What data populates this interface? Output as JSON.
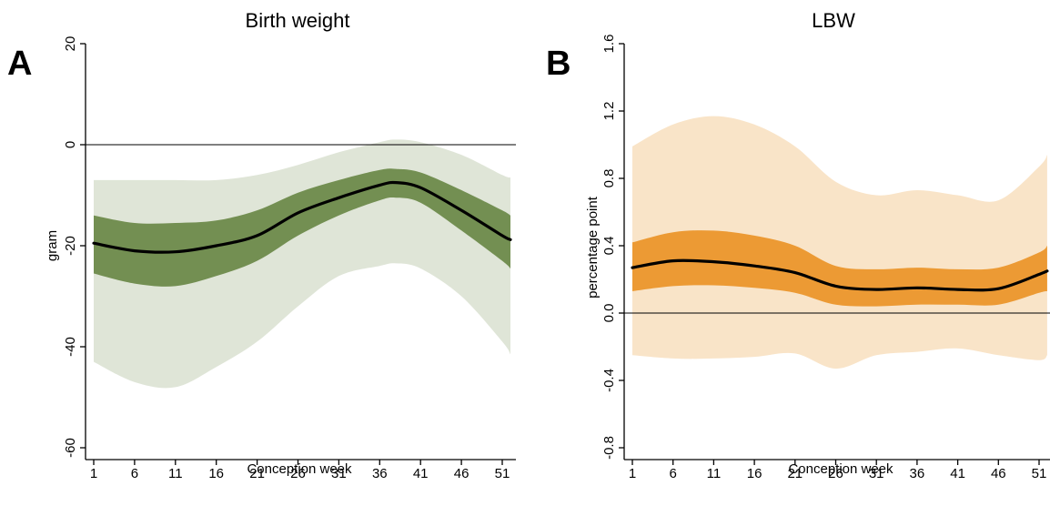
{
  "chart_data": [
    {
      "type": "line",
      "panel": "A",
      "title": "Birth weight",
      "xlabel": "Conception week",
      "ylabel": "gram",
      "xlim": [
        0,
        53
      ],
      "ylim": [
        -60,
        20
      ],
      "x_ticks": [
        1,
        6,
        11,
        16,
        21,
        26,
        31,
        36,
        41,
        46,
        51
      ],
      "y_ticks": [
        -60,
        -40,
        -20,
        0,
        20
      ],
      "reference_line": 0,
      "colors": {
        "line": "#000000",
        "inner_band": "#738f52",
        "outer_band": "#dfe5d7"
      },
      "x": [
        1,
        6,
        11,
        16,
        21,
        26,
        31,
        36,
        38,
        41,
        46,
        51,
        52
      ],
      "estimate": [
        -19.5,
        -21,
        -21.2,
        -20,
        -18,
        -13.5,
        -10.5,
        -8,
        -7.5,
        -8.5,
        -13,
        -18,
        -18.8
      ],
      "inner_lower": [
        -25.5,
        -27.5,
        -28,
        -26,
        -23,
        -18,
        -14,
        -11,
        -10.5,
        -11.5,
        -17,
        -23,
        -24.5
      ],
      "inner_upper": [
        -14,
        -15.5,
        -15.5,
        -15,
        -13,
        -9.5,
        -7,
        -5,
        -4.8,
        -5.5,
        -9,
        -13,
        -14
      ],
      "outer_lower": [
        -43,
        -47,
        -48,
        -44,
        -39,
        -32,
        -26,
        -24,
        -23.5,
        -24.5,
        -30,
        -39,
        -41.5
      ],
      "outer_upper": [
        -7,
        -7,
        -7,
        -7,
        -6,
        -4,
        -1.5,
        0.5,
        1,
        0.5,
        -2,
        -6,
        -6.5
      ]
    },
    {
      "type": "line",
      "panel": "B",
      "title": "LBW",
      "xlabel": "Conception week",
      "ylabel": "percentage point",
      "xlim": [
        0,
        53
      ],
      "ylim": [
        -0.8,
        1.6
      ],
      "x_ticks": [
        1,
        6,
        11,
        16,
        21,
        26,
        31,
        36,
        41,
        46,
        51
      ],
      "y_ticks": [
        "-0.8",
        "-0.4",
        "0.0",
        "0.4",
        "0.8",
        "1.2",
        "1.6"
      ],
      "reference_line": 0,
      "colors": {
        "line": "#000000",
        "inner_band": "#ec9a34",
        "outer_band": "#f9e4c8"
      },
      "x": [
        1,
        6,
        11,
        16,
        21,
        26,
        31,
        36,
        41,
        46,
        51,
        52
      ],
      "estimate": [
        0.27,
        0.31,
        0.305,
        0.28,
        0.24,
        0.16,
        0.14,
        0.15,
        0.14,
        0.145,
        0.23,
        0.25
      ],
      "inner_lower": [
        0.13,
        0.16,
        0.165,
        0.15,
        0.12,
        0.05,
        0.04,
        0.05,
        0.05,
        0.05,
        0.12,
        0.13
      ],
      "inner_upper": [
        0.42,
        0.48,
        0.49,
        0.46,
        0.4,
        0.28,
        0.26,
        0.27,
        0.26,
        0.27,
        0.36,
        0.4
      ],
      "outer_lower": [
        -0.25,
        -0.27,
        -0.27,
        -0.26,
        -0.24,
        -0.33,
        -0.25,
        -0.23,
        -0.21,
        -0.25,
        -0.28,
        -0.25
      ],
      "outer_upper": [
        0.99,
        1.12,
        1.17,
        1.12,
        0.99,
        0.78,
        0.7,
        0.73,
        0.7,
        0.67,
        0.87,
        0.94
      ]
    }
  ]
}
